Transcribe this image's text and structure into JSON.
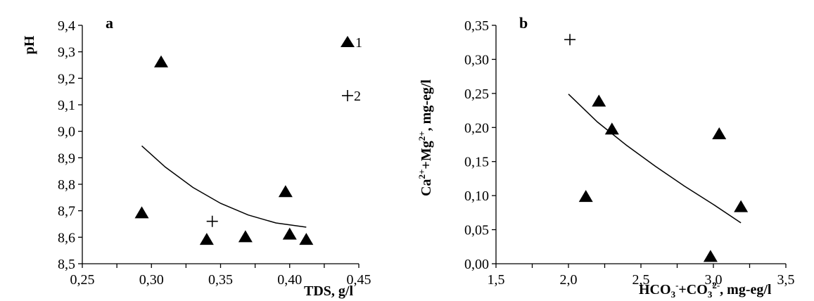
{
  "chart_data": [
    {
      "type": "scatter",
      "panel_label": "a",
      "xlabel": "TDS, g/l",
      "ylabel": "pH",
      "xlim": [
        0.25,
        0.45
      ],
      "ylim": [
        8.5,
        9.4
      ],
      "x_ticks": [
        "0,25",
        "0,30",
        "0,35",
        "0,40",
        "0,45"
      ],
      "y_ticks": [
        "8,5",
        "8,6",
        "8,7",
        "8,8",
        "8,9",
        "9,0",
        "9,1",
        "9,2",
        "9,3",
        "9,4"
      ],
      "legend": [
        "1",
        "2"
      ],
      "series": [
        {
          "name": "1",
          "marker": "triangle",
          "points": [
            {
              "x": 0.293,
              "y": 8.69
            },
            {
              "x": 0.307,
              "y": 9.26
            },
            {
              "x": 0.34,
              "y": 8.59
            },
            {
              "x": 0.368,
              "y": 8.6
            },
            {
              "x": 0.397,
              "y": 8.77
            },
            {
              "x": 0.4,
              "y": 8.61
            },
            {
              "x": 0.412,
              "y": 8.59
            }
          ]
        },
        {
          "name": "2",
          "marker": "plus",
          "points": [
            {
              "x": 0.344,
              "y": 8.66
            }
          ]
        }
      ],
      "trendline": [
        {
          "x": 0.293,
          "y": 8.945
        },
        {
          "x": 0.31,
          "y": 8.865
        },
        {
          "x": 0.33,
          "y": 8.788
        },
        {
          "x": 0.35,
          "y": 8.728
        },
        {
          "x": 0.37,
          "y": 8.684
        },
        {
          "x": 0.39,
          "y": 8.654
        },
        {
          "x": 0.412,
          "y": 8.638
        }
      ]
    },
    {
      "type": "scatter",
      "panel_label": "b",
      "xlabel": "HCO3-+CO32-, mg-eg/l",
      "ylabel": "Ca2++Mg2+, mg-eg/l",
      "xlim": [
        1.5,
        3.5
      ],
      "ylim": [
        0.0,
        0.35
      ],
      "x_ticks": [
        "1,5",
        "2,0",
        "2,5",
        "3,0",
        "3,5"
      ],
      "y_ticks": [
        "0,00",
        "0,05",
        "0,10",
        "0,15",
        "0,20",
        "0,25",
        "0,30",
        "0,35"
      ],
      "series": [
        {
          "name": "1",
          "marker": "triangle",
          "points": [
            {
              "x": 2.12,
              "y": 0.098
            },
            {
              "x": 2.21,
              "y": 0.238
            },
            {
              "x": 2.3,
              "y": 0.197
            },
            {
              "x": 2.98,
              "y": 0.01
            },
            {
              "x": 3.04,
              "y": 0.19
            },
            {
              "x": 3.19,
              "y": 0.083
            }
          ]
        },
        {
          "name": "2",
          "marker": "plus",
          "points": [
            {
              "x": 2.01,
              "y": 0.329
            }
          ]
        }
      ],
      "trendline": [
        {
          "x": 2.0,
          "y": 0.249
        },
        {
          "x": 2.2,
          "y": 0.208
        },
        {
          "x": 2.4,
          "y": 0.174
        },
        {
          "x": 2.6,
          "y": 0.143
        },
        {
          "x": 2.8,
          "y": 0.114
        },
        {
          "x": 3.0,
          "y": 0.087
        },
        {
          "x": 3.19,
          "y": 0.06
        }
      ]
    }
  ]
}
